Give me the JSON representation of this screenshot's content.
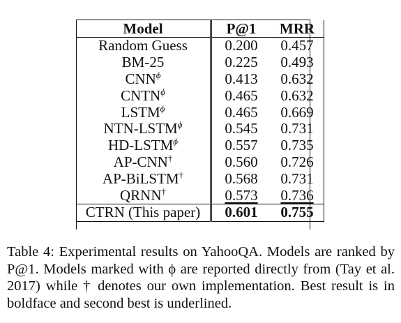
{
  "table": {
    "headers": {
      "model": "Model",
      "p1": "P@1",
      "mrr": "MRR"
    },
    "rows": [
      {
        "model": "Random Guess",
        "marker": "",
        "p1": "0.200",
        "mrr": "0.457"
      },
      {
        "model": "BM-25",
        "marker": "",
        "p1": "0.225",
        "mrr": "0.493"
      },
      {
        "model": "CNN",
        "marker": "ϕ",
        "p1": "0.413",
        "mrr": "0.632"
      },
      {
        "model": "CNTN",
        "marker": "ϕ",
        "p1": "0.465",
        "mrr": "0.632"
      },
      {
        "model": "LSTM",
        "marker": "ϕ",
        "p1": "0.465",
        "mrr": "0.669"
      },
      {
        "model": "NTN-LSTM",
        "marker": "ϕ",
        "p1": "0.545",
        "mrr": "0.731"
      },
      {
        "model": "HD-LSTM",
        "marker": "ϕ",
        "p1": "0.557",
        "mrr": "0.735"
      },
      {
        "model": "AP-CNN",
        "marker": "†",
        "p1": "0.560",
        "mrr": "0.726"
      },
      {
        "model": "AP-BiLSTM",
        "marker": "†",
        "p1": "0.568",
        "mrr": "0.731"
      },
      {
        "model": "QRNN",
        "marker": "†",
        "p1": "0.573",
        "mrr": "0.736"
      },
      {
        "model": "CTRN (This paper)",
        "marker": "",
        "p1": "0.601",
        "mrr": "0.755"
      }
    ]
  },
  "caption": "Table 4: Experimental results on YahooQA. Models are ranked by P@1. Models marked with ϕ are reported directly from (Tay et al. 2017) while † denotes our own implementation. Best result is in boldface and second best is underlined."
}
